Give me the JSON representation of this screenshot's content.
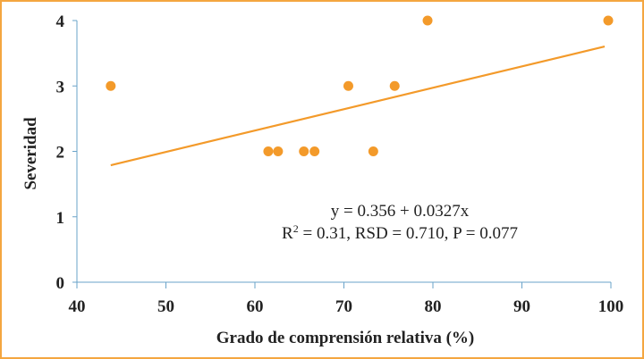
{
  "chart_data": {
    "type": "scatter",
    "xlabel": "Grado de comprensión relativa (%)",
    "ylabel": "Severidad",
    "xlim": [
      40,
      100
    ],
    "ylim": [
      0,
      4
    ],
    "xticks": [
      "40",
      "50",
      "60",
      "70",
      "80",
      "90",
      "100"
    ],
    "yticks": [
      "0",
      "1",
      "2",
      "3",
      "4"
    ],
    "grid": false,
    "points": [
      {
        "x": 43.8,
        "y": 3
      },
      {
        "x": 61.5,
        "y": 2
      },
      {
        "x": 62.6,
        "y": 2
      },
      {
        "x": 65.5,
        "y": 2
      },
      {
        "x": 66.7,
        "y": 2
      },
      {
        "x": 70.5,
        "y": 3
      },
      {
        "x": 73.3,
        "y": 2
      },
      {
        "x": 75.7,
        "y": 3
      },
      {
        "x": 79.4,
        "y": 4
      },
      {
        "x": 99.7,
        "y": 4
      }
    ],
    "trendline": {
      "intercept": 0.356,
      "slope": 0.0327,
      "x_range": [
        43.8,
        99.3
      ]
    },
    "annotation": {
      "equation": "y = 0.356 + 0.0327x",
      "stats_prefix": "R",
      "stats_sup": "2",
      "stats_rest": " = 0.31, RSD = 0.710, P = 0.077"
    },
    "colors": {
      "points": "#f39a2a",
      "line": "#f39a2a",
      "axis": "#6aa3c9",
      "frame": "#f4a640"
    }
  }
}
